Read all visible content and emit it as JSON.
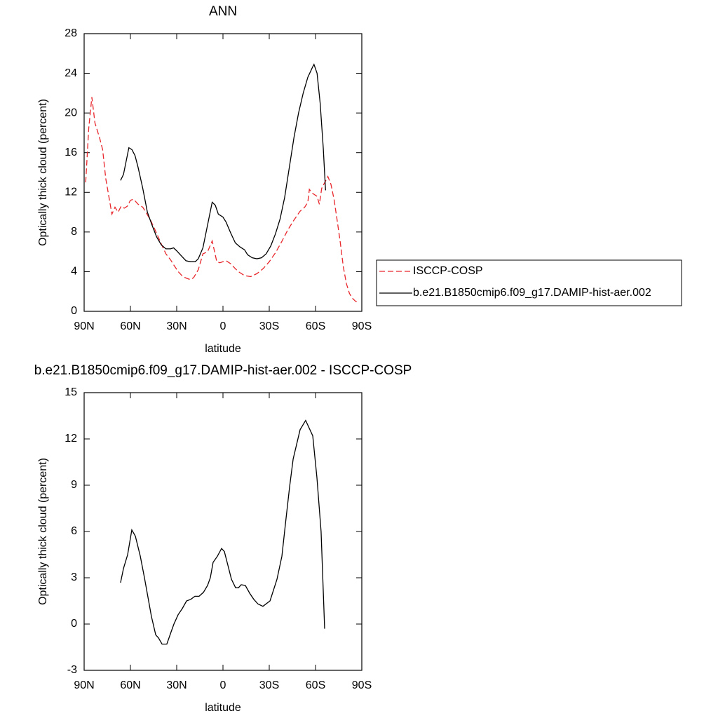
{
  "chart_data": [
    {
      "type": "line",
      "title": "ANN",
      "xlabel": "latitude",
      "ylabel": "Optically thick cloud (percent)",
      "xlim": [
        90,
        -90
      ],
      "ylim": [
        0,
        28
      ],
      "xticks": [
        {
          "value": 90,
          "label": "90N"
        },
        {
          "value": 60,
          "label": "60N"
        },
        {
          "value": 30,
          "label": "30N"
        },
        0,
        {
          "value": -30,
          "label": "30S"
        },
        {
          "value": -60,
          "label": "60S"
        },
        {
          "value": -90,
          "label": "90S"
        }
      ],
      "yticks": [
        0,
        4,
        8,
        12,
        16,
        20,
        24,
        28
      ],
      "series": [
        {
          "name": "ISCCP-COSP",
          "color": "#e8262b",
          "dash": true,
          "x": [
            89,
            87,
            85,
            83,
            80,
            78,
            76,
            72,
            70,
            68,
            66,
            64,
            62,
            60,
            58,
            55,
            52,
            50,
            47,
            44,
            40,
            37,
            34,
            32,
            29,
            26,
            23,
            21,
            19,
            16,
            13,
            10,
            7,
            4,
            2,
            0,
            -2,
            -5,
            -8,
            -10,
            -14,
            -18,
            -22,
            -26,
            -30,
            -34,
            -38,
            -42,
            -46,
            -50,
            -53,
            -55,
            -56,
            -58,
            -61,
            -62.5,
            -64,
            -66,
            -68,
            -70,
            -72,
            -74,
            -76,
            -78,
            -80,
            -82,
            -84,
            -86,
            -88
          ],
          "values": [
            13.0,
            18.5,
            21.6,
            19.0,
            17.5,
            16.3,
            13.4,
            9.8,
            10.5,
            10.0,
            10.6,
            10.4,
            10.6,
            11.2,
            11.3,
            10.8,
            10.5,
            10.0,
            9.2,
            8.2,
            6.8,
            5.8,
            5.2,
            4.7,
            4.0,
            3.5,
            3.3,
            3.2,
            3.4,
            4.2,
            5.8,
            6.0,
            7.1,
            5.0,
            4.9,
            5.0,
            5.1,
            4.8,
            4.3,
            4.0,
            3.6,
            3.5,
            3.8,
            4.3,
            5.0,
            5.9,
            7.0,
            8.2,
            9.2,
            10.1,
            10.5,
            11.0,
            12.3,
            11.9,
            11.6,
            10.8,
            12.4,
            13.0,
            13.6,
            12.8,
            11.3,
            9.2,
            7.0,
            4.5,
            2.8,
            1.8,
            1.3,
            1.0,
            0.9
          ]
        },
        {
          "name": "b.e21.B1850cmip6.f09_g17.DAMIP-hist-aer.002",
          "color": "#000000",
          "dash": false,
          "x": [
            66.4,
            64.5,
            61,
            59,
            57,
            55,
            52,
            49,
            46,
            43,
            40,
            37,
            34,
            32,
            30,
            27,
            24,
            21,
            18,
            16,
            13,
            10,
            7,
            5,
            3,
            0,
            -2,
            -5,
            -8,
            -11,
            -14,
            -16,
            -19,
            -22,
            -25,
            -28,
            -31,
            -34,
            -37,
            -40,
            -43,
            -46,
            -49,
            -52,
            -55,
            -58,
            -59,
            -61,
            -63,
            -65,
            -66.5
          ],
          "values": [
            13.2,
            13.8,
            16.5,
            16.3,
            15.7,
            14.5,
            12.4,
            10.0,
            8.7,
            7.5,
            6.7,
            6.3,
            6.3,
            6.4,
            6.1,
            5.6,
            5.1,
            5.0,
            5.0,
            5.3,
            6.4,
            8.7,
            11.0,
            10.7,
            9.8,
            9.5,
            9.0,
            7.9,
            6.9,
            6.5,
            6.2,
            5.7,
            5.4,
            5.3,
            5.4,
            5.8,
            6.6,
            7.8,
            9.3,
            11.5,
            14.5,
            17.5,
            20.0,
            22.0,
            23.6,
            24.6,
            24.9,
            24.0,
            21.0,
            16.5,
            12.2
          ]
        }
      ]
    },
    {
      "type": "line",
      "title": "b.e21.B1850cmip6.f09_g17.DAMIP-hist-aer.002 - ISCCP-COSP",
      "xlabel": "latitude",
      "ylabel": "Optically thick cloud (percent)",
      "xlim": [
        90,
        -90
      ],
      "ylim": [
        -3,
        15
      ],
      "xticks": [
        {
          "value": 90,
          "label": "90N"
        },
        {
          "value": 60,
          "label": "60N"
        },
        {
          "value": 30,
          "label": "30N"
        },
        0,
        {
          "value": -30,
          "label": "30S"
        },
        {
          "value": -60,
          "label": "60S"
        },
        {
          "value": -90,
          "label": "90S"
        }
      ],
      "yticks": [
        -3,
        0,
        3,
        6,
        9,
        12,
        15
      ],
      "series": [
        {
          "color": "#000000",
          "dash": false,
          "x": [
            66.4,
            64.5,
            61.8,
            59.1,
            56.8,
            53.6,
            50.9,
            48.2,
            46.4,
            43.6,
            41.8,
            39.5,
            36.4,
            33.6,
            31.8,
            29.1,
            26.4,
            23.6,
            20.9,
            18.2,
            15.5,
            12.7,
            10,
            8.2,
            6.4,
            3.6,
            0.9,
            -0.9,
            -2.7,
            -5.5,
            -8.2,
            -10,
            -11.8,
            -14.5,
            -17.3,
            -20,
            -22.7,
            -25.9,
            -30.5,
            -35,
            -38.2,
            -40.5,
            -43.2,
            -45.5,
            -50,
            -53.6,
            -58.2,
            -60.9,
            -63.6,
            -65.9
          ],
          "values": [
            2.68,
            3.6,
            4.5,
            6.1,
            5.7,
            4.4,
            3.0,
            1.5,
            0.5,
            -0.7,
            -0.9,
            -1.3,
            -1.3,
            -0.5,
            0.0,
            0.6,
            1.0,
            1.5,
            1.6,
            1.8,
            1.8,
            2.05,
            2.5,
            3.0,
            4.0,
            4.4,
            4.9,
            4.7,
            4.0,
            2.9,
            2.35,
            2.35,
            2.55,
            2.5,
            2.0,
            1.6,
            1.3,
            1.15,
            1.5,
            2.9,
            4.4,
            6.5,
            8.9,
            10.7,
            12.6,
            13.2,
            12.2,
            9.5,
            6.0,
            -0.3
          ]
        }
      ]
    }
  ]
}
